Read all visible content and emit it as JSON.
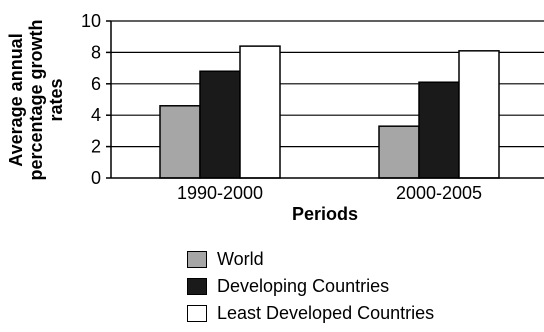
{
  "chart_data": {
    "type": "bar",
    "categories": [
      "1990-2000",
      "2000-2005"
    ],
    "series": [
      {
        "name": "World",
        "values": [
          4.6,
          3.3
        ],
        "color": "#a6a6a6"
      },
      {
        "name": "Developing Countries",
        "values": [
          6.8,
          6.1
        ],
        "color": "#1a1a1a"
      },
      {
        "name": "Least Developed Countries",
        "values": [
          8.4,
          8.1
        ],
        "color": "#ffffff"
      }
    ],
    "xlabel": "Periods",
    "ylabel": [
      "Average annual",
      "percentage growth",
      "rates"
    ],
    "ylim": [
      0,
      10
    ],
    "yticks": [
      0,
      2,
      4,
      6,
      8,
      10
    ],
    "grid": "horizontal",
    "legend_position": "bottom"
  }
}
